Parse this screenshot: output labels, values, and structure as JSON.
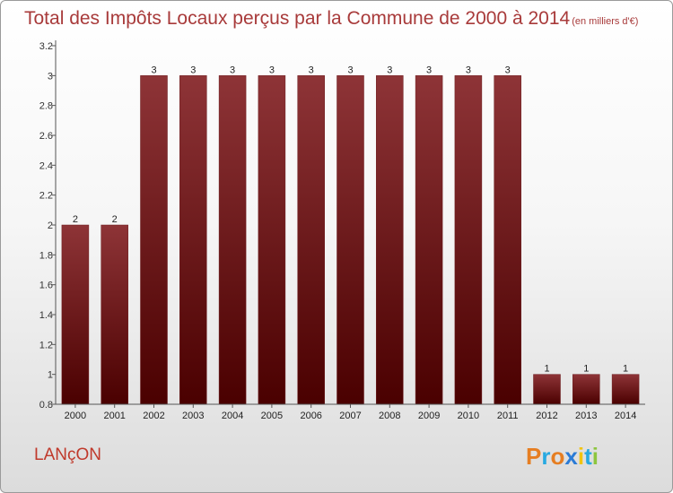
{
  "chart_data": {
    "type": "bar",
    "title": "Total des Impôts Locaux perçus par la Commune de 2000 à 2014",
    "unit_note": "(en milliers d'€)",
    "categories": [
      "2000",
      "2001",
      "2002",
      "2003",
      "2004",
      "2005",
      "2006",
      "2007",
      "2008",
      "2009",
      "2010",
      "2011",
      "2012",
      "2013",
      "2014"
    ],
    "values": [
      2,
      2,
      3,
      3,
      3,
      3,
      3,
      3,
      3,
      3,
      3,
      3,
      1,
      1,
      1
    ],
    "data_labels": [
      "2",
      "2",
      "3",
      "3",
      "3",
      "3",
      "3",
      "3",
      "3",
      "3",
      "3",
      "3",
      "1",
      "1",
      "1"
    ],
    "y_ticks": [
      "0.8",
      "1",
      "1.2",
      "1.4",
      "1.6",
      "1.8",
      "2",
      "2.2",
      "2.4",
      "2.6",
      "2.8",
      "3",
      "3.2"
    ],
    "ylim": [
      0.8,
      3.2
    ],
    "xlabel": "",
    "ylabel": "",
    "grid": false,
    "bar_color": "#7a1f22"
  },
  "commune": "LANçON",
  "brand": {
    "letters": [
      "P",
      "r",
      "o",
      "x",
      "i",
      "t",
      "i"
    ],
    "colors": [
      "#e67e22",
      "#27a9e1",
      "#e67e22",
      "#2b7bd6",
      "#f1c40f",
      "#27a9e1",
      "#8dc63f"
    ]
  }
}
